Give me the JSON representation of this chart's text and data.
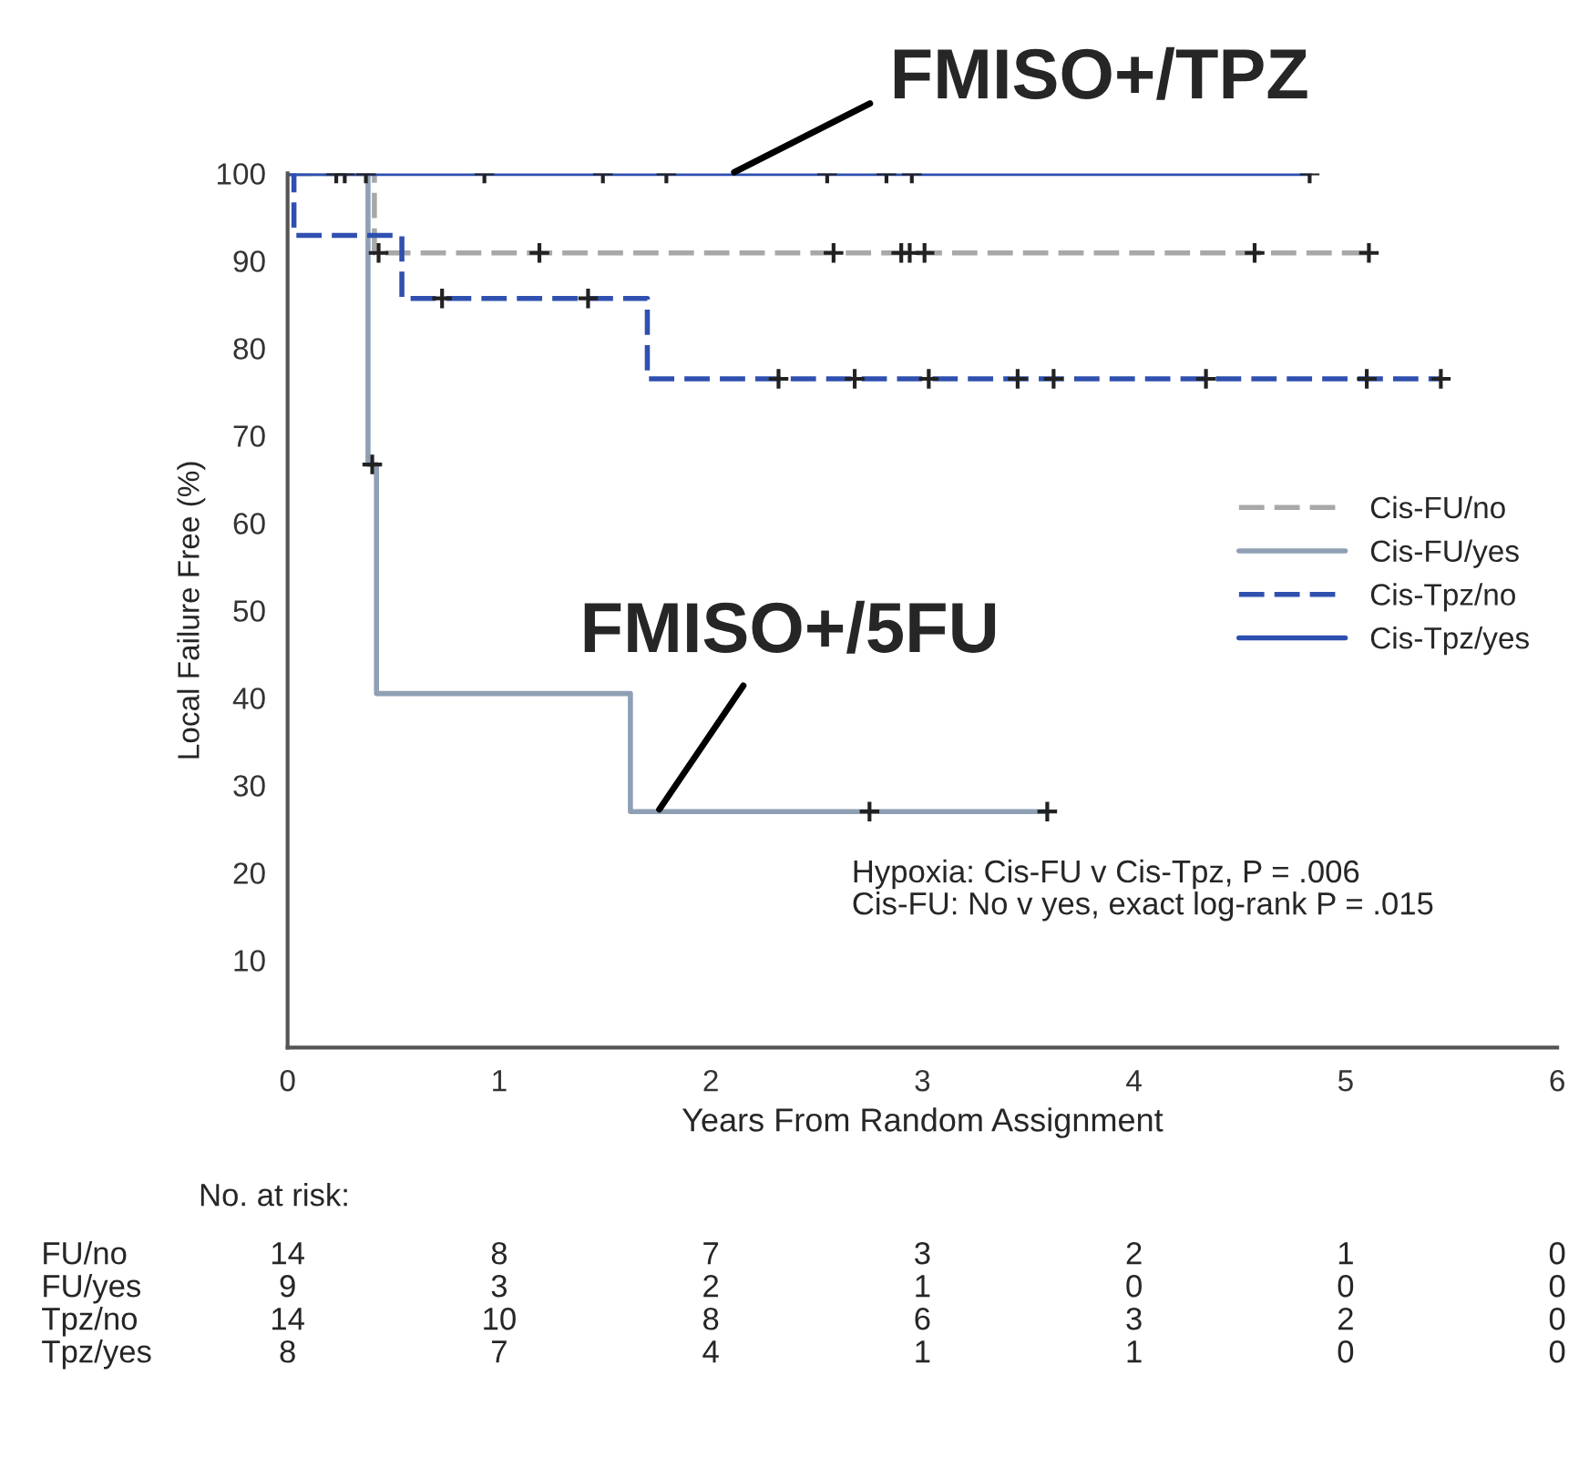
{
  "chart_data": {
    "type": "step",
    "xlabel": "Years From Random Assignment",
    "ylabel": "Local Failure Free (%)",
    "xlim": [
      0,
      6
    ],
    "xticks": [
      0,
      1,
      2,
      3,
      4,
      5,
      6
    ],
    "ylim": [
      0,
      100
    ],
    "yticks": [
      10,
      20,
      30,
      40,
      50,
      60,
      70,
      80,
      90,
      100
    ],
    "grid": false,
    "legend": "right",
    "series": [
      {
        "name": "Cis-FU/no",
        "color": "#a8a8a8",
        "line_style": "dashed",
        "x": [
          0,
          0.41,
          5.11
        ],
        "values": [
          100,
          90.9,
          90.9
        ]
      },
      {
        "name": "Cis-FU/yes",
        "color": "#8fa0b4",
        "line_style": "solid",
        "x": [
          0,
          0.38,
          0.42,
          1.62,
          3.59
        ],
        "values": [
          100,
          66.7,
          40.5,
          27.0,
          27.0
        ]
      },
      {
        "name": "Cis-Tpz/no",
        "color": "#3050b0",
        "line_style": "dashed",
        "x": [
          0,
          0.03,
          0.54,
          1.7,
          5.45
        ],
        "values": [
          100,
          92.9,
          85.7,
          76.5,
          76.5
        ]
      },
      {
        "name": "Cis-Tpz/yes",
        "color": "#2c4fb0",
        "line_style": "solid",
        "x": [
          0,
          4.83
        ],
        "values": [
          100,
          100
        ]
      },
      {
        "type": "scatter",
        "marker": "cross",
        "color": "#222222",
        "x": [
          0.43,
          1.19,
          2.58,
          2.9,
          2.94,
          3.01,
          4.57,
          5.11
        ],
        "values": [
          90.9,
          90.9,
          90.9,
          90.9,
          90.9,
          90.9,
          90.9,
          90.9
        ]
      },
      {
        "type": "scatter",
        "marker": "cross",
        "color": "#222222",
        "x": [
          0.4,
          2.75,
          3.59
        ],
        "values": [
          66.7,
          27.0,
          27.0
        ]
      },
      {
        "type": "scatter",
        "marker": "cross",
        "color": "#222222",
        "x": [
          0.73,
          1.42,
          2.32,
          2.68,
          3.03,
          3.45,
          3.62,
          4.34,
          5.1,
          5.45
        ],
        "values": [
          85.7,
          85.7,
          76.5,
          76.5,
          76.5,
          76.5,
          76.5,
          76.5,
          76.5,
          76.5
        ]
      },
      {
        "type": "scatter",
        "marker": "cross",
        "color": "#222222",
        "x": [
          0.23,
          0.27,
          0.37,
          0.93,
          1.49,
          1.79,
          2.55,
          2.83,
          2.95,
          4.83
        ],
        "values": [
          100,
          100,
          100,
          100,
          100,
          100,
          100,
          100,
          100,
          100
        ]
      }
    ],
    "annotations": [
      {
        "text": "FMISO+/TPZ",
        "x": 2.1,
        "y": 100
      },
      {
        "text": "FMISO+/5FU",
        "x": 1.75,
        "y": 27
      },
      "Hypoxia: Cis-FU v Cis-Tpz, P = .006",
      "Cis-FU: No v yes, exact log-rank P = .015",
      "No. at risk:",
      "FU/no",
      "14",
      "8",
      "7",
      "3",
      "2",
      "1",
      "0",
      "FU/yes",
      "9",
      "3",
      "2",
      "1",
      "0",
      "0",
      "0",
      "Tpz/no",
      "14",
      "10",
      "8",
      "6",
      "3",
      "2",
      "0",
      "Tpz/yes",
      "8",
      "7",
      "4",
      "1",
      "1",
      "0",
      "0"
    ]
  }
}
